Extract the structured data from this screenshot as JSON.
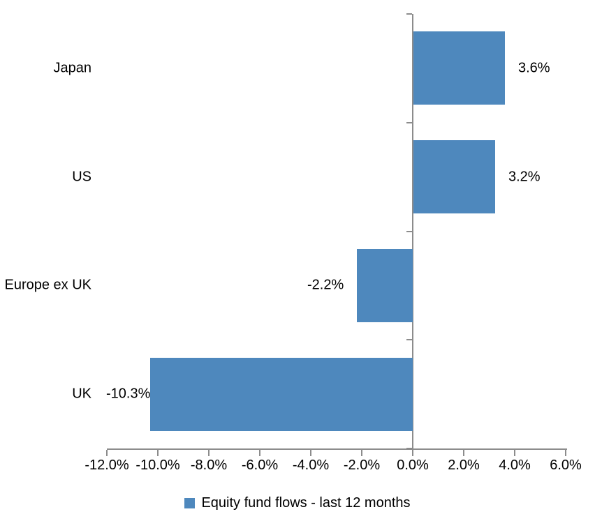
{
  "chart_data": {
    "type": "bar",
    "orientation": "horizontal",
    "title": "",
    "categories": [
      "Japan",
      "US",
      "Europe ex UK",
      "UK"
    ],
    "series": [
      {
        "name": "Equity fund flows - last 12 months",
        "values": [
          3.6,
          3.2,
          -2.2,
          -10.3
        ],
        "labels": [
          "3.6%",
          "3.2%",
          "-2.2%",
          "-10.3%"
        ],
        "color": "#4E88BD"
      }
    ],
    "xlim": [
      -12,
      6
    ],
    "x_ticks": [
      {
        "value": -12,
        "label": "-12.0%"
      },
      {
        "value": -10,
        "label": "-10.0%"
      },
      {
        "value": -8,
        "label": "-8.0%"
      },
      {
        "value": -6,
        "label": "-6.0%"
      },
      {
        "value": -4,
        "label": "-4.0%"
      },
      {
        "value": -2,
        "label": "-2.0%"
      },
      {
        "value": 0,
        "label": "0.0%"
      },
      {
        "value": 2,
        "label": "2.0%"
      },
      {
        "value": 4,
        "label": "4.0%"
      },
      {
        "value": 6,
        "label": "6.0%"
      }
    ],
    "grid": false,
    "legend_position": "bottom",
    "axis_color": "#8C8C8C",
    "text_color": "#000000",
    "background": "#FFFFFF"
  },
  "legend": {
    "label": "Equity fund flows - last 12 months",
    "swatch_color": "#4E88BD"
  }
}
